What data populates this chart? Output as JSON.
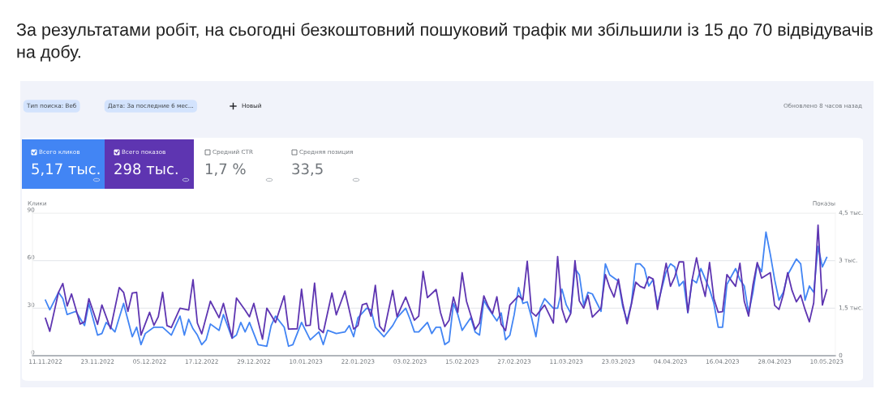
{
  "chart_data": {
    "type": "line",
    "title": "За результатами робіт, на сьогодні безкоштовний пошуковий трафік ми збільшили із 15 до 70 відвідувачів на добу.",
    "ylabel": "Клики",
    "y2label": "Показы",
    "series": [
      {
        "name": "Всего кликов",
        "color": "#4285f4",
        "x": [
          "2022-11-11",
          "2022-11-12",
          "2022-11-14",
          "2022-11-15",
          "2022-11-16",
          "2022-11-18",
          "2022-11-20",
          "2022-11-21",
          "2022-11-23",
          "2022-11-24",
          "2022-11-25",
          "2022-11-27",
          "2022-11-28",
          "2022-11-29",
          "2022-12-01",
          "2022-12-02",
          "2022-12-03",
          "2022-12-04",
          "2022-12-06",
          "2022-12-08",
          "2022-12-10",
          "2022-12-12",
          "2022-12-13",
          "2022-12-14",
          "2022-12-15",
          "2022-12-16",
          "2022-12-17",
          "2022-12-18",
          "2022-12-19",
          "2022-12-21",
          "2022-12-22",
          "2022-12-24",
          "2022-12-25",
          "2022-12-26",
          "2022-12-27",
          "2022-12-28",
          "2022-12-30",
          "2023-01-01",
          "2023-01-02",
          "2023-01-03",
          "2023-01-05",
          "2023-01-06",
          "2023-01-07",
          "2023-01-09",
          "2023-01-11",
          "2023-01-13",
          "2023-01-14",
          "2023-01-15",
          "2023-01-17",
          "2023-01-19",
          "2023-01-20",
          "2023-01-21",
          "2023-01-22",
          "2023-01-24",
          "2023-01-25",
          "2023-01-26",
          "2023-01-28",
          "2023-01-30",
          "2023-01-31",
          "2023-02-02",
          "2023-02-03",
          "2023-02-04",
          "2023-02-05",
          "2023-02-07",
          "2023-02-08",
          "2023-02-09",
          "2023-02-10",
          "2023-02-11",
          "2023-02-12",
          "2023-02-13",
          "2023-02-14",
          "2023-02-15",
          "2023-02-17",
          "2023-02-18",
          "2023-02-19",
          "2023-02-20",
          "2023-02-21",
          "2023-02-23",
          "2023-02-24",
          "2023-02-25",
          "2023-02-26",
          "2023-02-27",
          "2023-02-28",
          "2023-03-01",
          "2023-03-02",
          "2023-03-03",
          "2023-03-04",
          "2023-03-05",
          "2023-03-06",
          "2023-03-08",
          "2023-03-09",
          "2023-03-10",
          "2023-03-11",
          "2023-03-12",
          "2023-03-13",
          "2023-03-14",
          "2023-03-15",
          "2023-03-16",
          "2023-03-17",
          "2023-03-19",
          "2023-03-20",
          "2023-03-21",
          "2023-03-23",
          "2023-03-24",
          "2023-03-25",
          "2023-03-26",
          "2023-03-27",
          "2023-03-28",
          "2023-03-29",
          "2023-03-30",
          "2023-03-31",
          "2023-04-01",
          "2023-04-03",
          "2023-04-04",
          "2023-04-05",
          "2023-04-06",
          "2023-04-07",
          "2023-04-08",
          "2023-04-09",
          "2023-04-10",
          "2023-04-11",
          "2023-04-13",
          "2023-04-14",
          "2023-04-15",
          "2023-04-16",
          "2023-04-17",
          "2023-04-19",
          "2023-04-20",
          "2023-04-21",
          "2023-04-22",
          "2023-04-23",
          "2023-04-24",
          "2023-04-25",
          "2023-04-26",
          "2023-04-27",
          "2023-04-28",
          "2023-04-29",
          "2023-04-30",
          "2023-05-01",
          "2023-05-03",
          "2023-05-04",
          "2023-05-05",
          "2023-05-06",
          "2023-05-07",
          "2023-05-08",
          "2023-05-09",
          "2023-05-10"
        ],
        "values": [
          35,
          29,
          40,
          36,
          26,
          28,
          19,
          33,
          13,
          14,
          21,
          15,
          24,
          33,
          12,
          18,
          7,
          14,
          18,
          18,
          13,
          25,
          13,
          23,
          17,
          13,
          7,
          10,
          20,
          16,
          26,
          11,
          13,
          21,
          15,
          21,
          7,
          6,
          19,
          25,
          18,
          6,
          7,
          21,
          10,
          15,
          7,
          16,
          14,
          15,
          19,
          12,
          24,
          30,
          29,
          18,
          12,
          19,
          24,
          30,
          23,
          15,
          15,
          21,
          14,
          18,
          18,
          7,
          9,
          33,
          26,
          16,
          24,
          15,
          13,
          35,
          30,
          22,
          27,
          10,
          13,
          26,
          43,
          33,
          34,
          24,
          12,
          30,
          36,
          30,
          30,
          42,
          32,
          27,
          55,
          51,
          32,
          40,
          39,
          28,
          58,
          51,
          47,
          31,
          22,
          33,
          58,
          58,
          55,
          44,
          48,
          32,
          53,
          58,
          56,
          44,
          47,
          27,
          48,
          46,
          55,
          42,
          33,
          18,
          18,
          45,
          55,
          48,
          44,
          27,
          40,
          58,
          53,
          78,
          64,
          48,
          35,
          40,
          51,
          61,
          58,
          35,
          44,
          40,
          69,
          56,
          62
        ]
      },
      {
        "name": "Всего показов",
        "color": "#5e35b1",
        "axis": "y2",
        "x": [
          "2022-11-11",
          "2022-11-12",
          "2022-11-14",
          "2022-11-15",
          "2022-11-16",
          "2022-11-17",
          "2022-11-19",
          "2022-11-20",
          "2022-11-21",
          "2022-11-23",
          "2022-11-24",
          "2022-11-26",
          "2022-11-28",
          "2022-11-29",
          "2022-11-30",
          "2022-12-01",
          "2022-12-02",
          "2022-12-03",
          "2022-12-05",
          "2022-12-06",
          "2022-12-07",
          "2022-12-08",
          "2022-12-09",
          "2022-12-10",
          "2022-12-12",
          "2022-12-14",
          "2022-12-15",
          "2022-12-16",
          "2022-12-17",
          "2022-12-19",
          "2022-12-21",
          "2022-12-22",
          "2022-12-24",
          "2022-12-25",
          "2022-12-27",
          "2022-12-28",
          "2022-12-29",
          "2022-12-31",
          "2023-01-01",
          "2023-01-03",
          "2023-01-05",
          "2023-01-06",
          "2023-01-08",
          "2023-01-09",
          "2023-01-10",
          "2023-01-11",
          "2023-01-12",
          "2023-01-13",
          "2023-01-14",
          "2023-01-16",
          "2023-01-17",
          "2023-01-19",
          "2023-01-21",
          "2023-01-22",
          "2023-01-23",
          "2023-01-24",
          "2023-01-25",
          "2023-01-26",
          "2023-01-27",
          "2023-01-28",
          "2023-01-30",
          "2023-01-31",
          "2023-02-01",
          "2023-02-02",
          "2023-02-04",
          "2023-02-05",
          "2023-02-06",
          "2023-02-07",
          "2023-02-09",
          "2023-02-10",
          "2023-02-11",
          "2023-02-12",
          "2023-02-13",
          "2023-02-14",
          "2023-02-15",
          "2023-02-16",
          "2023-02-18",
          "2023-02-19",
          "2023-02-20",
          "2023-02-21",
          "2023-02-22",
          "2023-02-23",
          "2023-02-24",
          "2023-02-25",
          "2023-02-26",
          "2023-02-28",
          "2023-03-01",
          "2023-03-02",
          "2023-03-03",
          "2023-03-04",
          "2023-03-06",
          "2023-03-08",
          "2023-03-09",
          "2023-03-10",
          "2023-03-11",
          "2023-03-12",
          "2023-03-13",
          "2023-03-14",
          "2023-03-15",
          "2023-03-16",
          "2023-03-17",
          "2023-03-19",
          "2023-03-20",
          "2023-03-21",
          "2023-03-22",
          "2023-03-23",
          "2023-03-24",
          "2023-03-25",
          "2023-03-26",
          "2023-03-27",
          "2023-03-28",
          "2023-03-29",
          "2023-03-30",
          "2023-03-31",
          "2023-04-01",
          "2023-04-03",
          "2023-04-04",
          "2023-04-05",
          "2023-04-06",
          "2023-04-07",
          "2023-04-08",
          "2023-04-09",
          "2023-04-10",
          "2023-04-11",
          "2023-04-12",
          "2023-04-13",
          "2023-04-14",
          "2023-04-15",
          "2023-04-16",
          "2023-04-17",
          "2023-04-19",
          "2023-04-20",
          "2023-04-21",
          "2023-04-22",
          "2023-04-23",
          "2023-04-24",
          "2023-04-25",
          "2023-04-27",
          "2023-04-28",
          "2023-04-29",
          "2023-04-30",
          "2023-05-01",
          "2023-05-02",
          "2023-05-03",
          "2023-05-04",
          "2023-05-05",
          "2023-05-06",
          "2023-05-07",
          "2023-05-08",
          "2023-05-09",
          "2023-05-10"
        ],
        "values": [
          1.18,
          0.77,
          2.0,
          2.28,
          1.57,
          1.95,
          1.0,
          1.07,
          1.8,
          0.99,
          1.6,
          0.85,
          2.15,
          2.0,
          1.4,
          1.98,
          2.0,
          0.65,
          1.37,
          0.96,
          1.23,
          2.0,
          0.95,
          0.89,
          1.5,
          1.44,
          2.4,
          1.03,
          0.69,
          1.72,
          1.2,
          1.65,
          0.56,
          1.82,
          1.44,
          1.23,
          1.65,
          0.52,
          1.5,
          1.05,
          1.89,
          0.84,
          0.85,
          2.1,
          0.95,
          0.96,
          2.29,
          0.85,
          0.73,
          1.98,
          1.29,
          2.04,
          0.84,
          0.95,
          1.61,
          1.65,
          1.25,
          2.22,
          0.93,
          0.76,
          2.06,
          1.23,
          1.55,
          1.85,
          1.12,
          1.25,
          2.66,
          1.83,
          2.09,
          1.37,
          0.92,
          1.12,
          1.85,
          1.37,
          2.62,
          1.72,
          0.83,
          1.03,
          1.89,
          1.56,
          1.33,
          1.86,
          0.99,
          0.79,
          1.6,
          1.89,
          1.76,
          2.98,
          1.37,
          1.25,
          1.6,
          1.03,
          3.13,
          1.48,
          1.05,
          1.33,
          3.0,
          1.73,
          1.5,
          1.9,
          1.22,
          1.5,
          2.56,
          2.15,
          1.85,
          2.42,
          1.65,
          1.01,
          1.63,
          2.32,
          2.19,
          2.13,
          2.49,
          2.42,
          1.46,
          2.92,
          2.19,
          2.49,
          2.96,
          2.96,
          1.37,
          2.4,
          3.09,
          2.4,
          1.87,
          2.94,
          1.8,
          1.37,
          1.39,
          2.56,
          2.19,
          2.92,
          1.72,
          1.25,
          2.23,
          2.94,
          2.45,
          2.62,
          1.59,
          1.46,
          1.93,
          2.62,
          2.06,
          1.7,
          1.91,
          1.46,
          1.07,
          1.67,
          4.12,
          1.6,
          2.08
        ]
      }
    ],
    "xlim": [
      "2022-11-08",
      "2023-05-12"
    ],
    "xticks": [
      {
        "value": "2022-11-11",
        "label": "11.11.2022"
      },
      {
        "value": "2022-11-23",
        "label": "23.11.2022"
      },
      {
        "value": "2022-12-05",
        "label": "05.12.2022"
      },
      {
        "value": "2022-12-17",
        "label": "17.12.2022"
      },
      {
        "value": "2022-12-29",
        "label": "29.12.2022"
      },
      {
        "value": "2023-01-10",
        "label": "10.01.2023"
      },
      {
        "value": "2023-01-22",
        "label": "22.01.2023"
      },
      {
        "value": "2023-02-03",
        "label": "03.02.2023"
      },
      {
        "value": "2023-02-15",
        "label": "15.02.2023"
      },
      {
        "value": "2023-02-27",
        "label": "27.02.2023"
      },
      {
        "value": "2023-03-11",
        "label": "11.03.2023"
      },
      {
        "value": "2023-03-23",
        "label": "23.03.2023"
      },
      {
        "value": "2023-04-04",
        "label": "04.04.2023"
      },
      {
        "value": "2023-04-16",
        "label": "16.04.2023"
      },
      {
        "value": "2023-04-28",
        "label": "28.04.2023"
      },
      {
        "value": "2023-05-10",
        "label": "10.05.2023"
      }
    ],
    "ylim": [
      0,
      90
    ],
    "yticks": [
      0,
      30,
      60,
      90
    ],
    "y2lim": [
      0,
      4.5
    ],
    "y2ticks": [
      0,
      {
        "value": 1.5,
        "label": "1,5 тыс."
      },
      {
        "value": 3,
        "label": "3 тыс."
      },
      {
        "value": 4.5,
        "label": "4,5 тыс."
      }
    ],
    "grid": "y",
    "legend": "top left",
    "marker": "none",
    "line_style": "solid",
    "annotations": [
      "Тип поиска: Веб",
      "Дата: За последние 6 мес...",
      "Новый",
      "Обновлено 8 часов назад",
      "5,17 тыс.",
      "298 тыс.",
      "Средний CTR",
      "1,7 %",
      "Средняя позиция",
      "33,5"
    ]
  }
}
